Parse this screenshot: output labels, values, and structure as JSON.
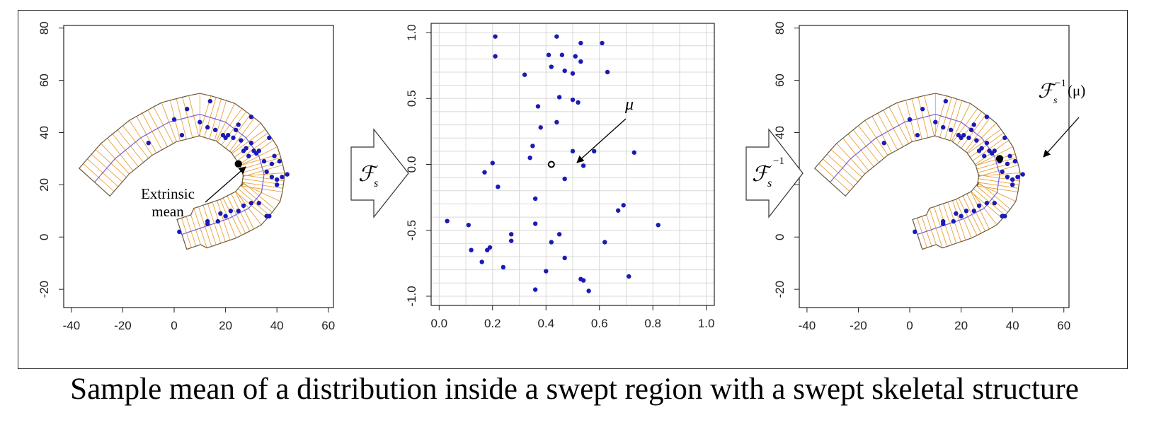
{
  "caption": "Sample mean of a distribution inside a swept region with a swept skeletal structure",
  "colors": {
    "points": "#1a1ab8",
    "spokes": "#e8a13a",
    "skeleton": "#7a5fcf",
    "boundary": "#6b5a40",
    "mean": "#000000"
  },
  "operators": {
    "forward": "ℱ",
    "forward_sub": "s",
    "inverse": "ℱ",
    "inverse_sub": "s",
    "inverse_sup": "−1"
  },
  "annotations": {
    "left_line1": "Extrinsic",
    "left_line2": "mean",
    "middle_label": "μ",
    "right_label_main": "ℱ",
    "right_label_sub": "s",
    "right_label_sup": "−1",
    "right_label_arg": "(μ)"
  },
  "chart_data": [
    {
      "type": "scatter",
      "title": "",
      "xlabel": "",
      "ylabel": "",
      "xlim": [
        -43,
        62
      ],
      "ylim": [
        -27,
        81
      ],
      "xticks": [
        -40,
        -20,
        0,
        20,
        40,
        60
      ],
      "yticks": [
        -20,
        0,
        20,
        40,
        60,
        80
      ],
      "grid": false,
      "skeleton": [
        [
          -31,
          21
        ],
        [
          -23,
          30
        ],
        [
          -13,
          38
        ],
        [
          -2,
          44
        ],
        [
          10,
          47
        ],
        [
          20,
          44
        ],
        [
          28,
          38
        ],
        [
          33,
          31
        ],
        [
          35,
          24
        ],
        [
          34,
          17
        ],
        [
          29,
          11
        ],
        [
          21,
          7
        ],
        [
          12,
          4
        ],
        [
          3,
          1
        ]
      ],
      "region_width": 8,
      "series": [
        {
          "values": [
            [
              -10,
              36
            ],
            [
              0,
              45
            ],
            [
              3,
              39
            ],
            [
              5,
              49
            ],
            [
              10,
              44
            ],
            [
              13,
              42
            ],
            [
              14,
              52
            ],
            [
              16,
              41
            ],
            [
              19,
              39
            ],
            [
              20,
              38
            ],
            [
              21,
              39
            ],
            [
              23,
              38
            ],
            [
              24,
              41
            ],
            [
              25,
              43
            ],
            [
              26,
              37
            ],
            [
              27,
              33
            ],
            [
              28,
              34
            ],
            [
              29,
              31
            ],
            [
              30,
              46
            ],
            [
              30,
              36
            ],
            [
              31,
              33
            ],
            [
              32,
              32
            ],
            [
              33,
              33
            ],
            [
              35,
              29
            ],
            [
              36,
              25
            ],
            [
              37,
              38
            ],
            [
              38,
              23
            ],
            [
              38,
              28
            ],
            [
              39,
              31
            ],
            [
              40,
              20
            ],
            [
              40,
              22
            ],
            [
              41,
              29
            ],
            [
              42,
              23
            ],
            [
              44,
              24
            ],
            [
              37,
              8
            ],
            [
              36,
              8
            ],
            [
              33,
              13
            ],
            [
              30,
              13
            ],
            [
              27,
              12
            ],
            [
              25,
              10
            ],
            [
              22,
              10
            ],
            [
              20,
              8
            ],
            [
              18,
              9
            ],
            [
              17,
              6
            ],
            [
              13,
              5
            ],
            [
              13,
              6
            ],
            [
              2,
              2
            ]
          ]
        }
      ],
      "mean": [
        25,
        28
      ]
    },
    {
      "type": "scatter",
      "title": "",
      "xlabel": "",
      "ylabel": "",
      "xlim": [
        -0.03,
        1.03
      ],
      "ylim": [
        -1.07,
        1.07
      ],
      "xticks": [
        0.0,
        0.2,
        0.4,
        0.6,
        0.8,
        1.0
      ],
      "xtick_labels": [
        "0.0",
        "0.2",
        "0.4",
        "0.6",
        "0.8",
        "1.0"
      ],
      "yticks": [
        -1.0,
        -0.5,
        0.0,
        0.5,
        1.0
      ],
      "ytick_labels": [
        "-1.0",
        "-0.5",
        "0.0",
        "0.5",
        "1.0"
      ],
      "grid": true,
      "series": [
        {
          "values": [
            [
              0.21,
              0.97
            ],
            [
              0.44,
              0.97
            ],
            [
              0.53,
              0.92
            ],
            [
              0.61,
              0.92
            ],
            [
              0.21,
              0.82
            ],
            [
              0.41,
              0.83
            ],
            [
              0.46,
              0.83
            ],
            [
              0.51,
              0.82
            ],
            [
              0.53,
              0.78
            ],
            [
              0.42,
              0.74
            ],
            [
              0.47,
              0.71
            ],
            [
              0.5,
              0.69
            ],
            [
              0.63,
              0.7
            ],
            [
              0.32,
              0.68
            ],
            [
              0.45,
              0.51
            ],
            [
              0.5,
              0.49
            ],
            [
              0.52,
              0.47
            ],
            [
              0.37,
              0.44
            ],
            [
              0.44,
              0.32
            ],
            [
              0.38,
              0.28
            ],
            [
              0.35,
              0.14
            ],
            [
              0.34,
              0.05
            ],
            [
              0.5,
              0.1
            ],
            [
              0.58,
              0.1
            ],
            [
              0.73,
              0.09
            ],
            [
              0.2,
              0.01
            ],
            [
              0.54,
              -0.01
            ],
            [
              0.17,
              -0.06
            ],
            [
              0.47,
              -0.11
            ],
            [
              0.22,
              -0.17
            ],
            [
              0.36,
              -0.26
            ],
            [
              0.69,
              -0.31
            ],
            [
              0.67,
              -0.35
            ],
            [
              0.03,
              -0.43
            ],
            [
              0.11,
              -0.46
            ],
            [
              0.36,
              -0.45
            ],
            [
              0.82,
              -0.46
            ],
            [
              0.27,
              -0.53
            ],
            [
              0.45,
              -0.53
            ],
            [
              0.27,
              -0.58
            ],
            [
              0.42,
              -0.59
            ],
            [
              0.62,
              -0.59
            ],
            [
              0.19,
              -0.63
            ],
            [
              0.12,
              -0.65
            ],
            [
              0.18,
              -0.65
            ],
            [
              0.47,
              -0.71
            ],
            [
              0.16,
              -0.74
            ],
            [
              0.24,
              -0.78
            ],
            [
              0.4,
              -0.81
            ],
            [
              0.71,
              -0.85
            ],
            [
              0.53,
              -0.87
            ],
            [
              0.54,
              -0.88
            ],
            [
              0.36,
              -0.95
            ],
            [
              0.56,
              -0.96
            ]
          ]
        }
      ],
      "mean": [
        0.42,
        0.0
      ]
    },
    {
      "type": "scatter",
      "title": "",
      "xlabel": "",
      "ylabel": "",
      "xlim": [
        -43,
        62
      ],
      "ylim": [
        -27,
        81
      ],
      "xticks": [
        -40,
        -20,
        0,
        20,
        40,
        60
      ],
      "yticks": [
        -20,
        0,
        20,
        40,
        60,
        80
      ],
      "grid": false,
      "skeleton": [
        [
          -31,
          21
        ],
        [
          -23,
          30
        ],
        [
          -13,
          38
        ],
        [
          -2,
          44
        ],
        [
          10,
          47
        ],
        [
          20,
          44
        ],
        [
          28,
          38
        ],
        [
          33,
          31
        ],
        [
          35,
          24
        ],
        [
          34,
          17
        ],
        [
          29,
          11
        ],
        [
          21,
          7
        ],
        [
          12,
          4
        ],
        [
          3,
          1
        ]
      ],
      "region_width": 8,
      "series": [
        {
          "values": [
            [
              -10,
              36
            ],
            [
              0,
              45
            ],
            [
              3,
              39
            ],
            [
              5,
              49
            ],
            [
              10,
              44
            ],
            [
              13,
              42
            ],
            [
              14,
              52
            ],
            [
              16,
              41
            ],
            [
              19,
              39
            ],
            [
              20,
              38
            ],
            [
              21,
              39
            ],
            [
              23,
              38
            ],
            [
              24,
              41
            ],
            [
              25,
              43
            ],
            [
              26,
              37
            ],
            [
              27,
              33
            ],
            [
              28,
              34
            ],
            [
              29,
              31
            ],
            [
              30,
              46
            ],
            [
              30,
              36
            ],
            [
              31,
              33
            ],
            [
              32,
              32
            ],
            [
              33,
              33
            ],
            [
              35,
              29
            ],
            [
              36,
              25
            ],
            [
              37,
              38
            ],
            [
              38,
              23
            ],
            [
              38,
              28
            ],
            [
              39,
              31
            ],
            [
              40,
              20
            ],
            [
              40,
              22
            ],
            [
              41,
              29
            ],
            [
              42,
              23
            ],
            [
              44,
              24
            ],
            [
              37,
              8
            ],
            [
              36,
              8
            ],
            [
              33,
              13
            ],
            [
              30,
              13
            ],
            [
              27,
              12
            ],
            [
              25,
              10
            ],
            [
              22,
              10
            ],
            [
              20,
              8
            ],
            [
              18,
              9
            ],
            [
              17,
              6
            ],
            [
              13,
              5
            ],
            [
              13,
              6
            ],
            [
              2,
              2
            ]
          ]
        }
      ],
      "mean": [
        35,
        30
      ]
    }
  ]
}
